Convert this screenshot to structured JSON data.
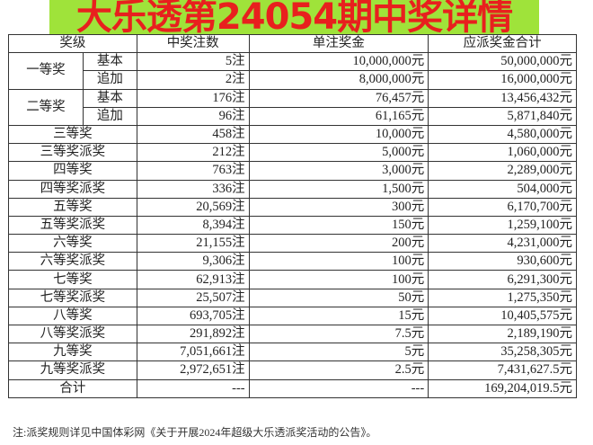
{
  "title": "大乐透第24054期中奖详情",
  "colors": {
    "title_text": "#e8201e",
    "title_bg": "#9fe33a"
  },
  "headers": [
    "奖级",
    "中奖注数",
    "单注奖金",
    "应派奖金合计"
  ],
  "split_rows": [
    {
      "level": "一等奖",
      "subs": [
        {
          "sub": "基本",
          "count": "5注",
          "prize": "10,000,000元",
          "total": "50,000,000元"
        },
        {
          "sub": "追加",
          "count": "2注",
          "prize": "8,000,000元",
          "total": "16,000,000元"
        }
      ]
    },
    {
      "level": "二等奖",
      "subs": [
        {
          "sub": "基本",
          "count": "176注",
          "prize": "76,457元",
          "total": "13,456,432元"
        },
        {
          "sub": "追加",
          "count": "96注",
          "prize": "61,165元",
          "total": "5,871,840元"
        }
      ]
    }
  ],
  "rows": [
    {
      "level": "三等奖",
      "count": "458注",
      "prize": "10,000元",
      "total": "4,580,000元"
    },
    {
      "level": "三等奖派奖",
      "count": "212注",
      "prize": "5,000元",
      "total": "1,060,000元"
    },
    {
      "level": "四等奖",
      "count": "763注",
      "prize": "3,000元",
      "total": "2,289,000元"
    },
    {
      "level": "四等奖派奖",
      "count": "336注",
      "prize": "1,500元",
      "total": "504,000元"
    },
    {
      "level": "五等奖",
      "count": "20,569注",
      "prize": "300元",
      "total": "6,170,700元"
    },
    {
      "level": "五等奖派奖",
      "count": "8,394注",
      "prize": "150元",
      "total": "1,259,100元"
    },
    {
      "level": "六等奖",
      "count": "21,155注",
      "prize": "200元",
      "total": "4,231,000元"
    },
    {
      "level": "六等奖派奖",
      "count": "9,306注",
      "prize": "100元",
      "total": "930,600元"
    },
    {
      "level": "七等奖",
      "count": "62,913注",
      "prize": "100元",
      "total": "6,291,300元"
    },
    {
      "level": "七等奖派奖",
      "count": "25,507注",
      "prize": "50元",
      "total": "1,275,350元"
    },
    {
      "level": "八等奖",
      "count": "693,705注",
      "prize": "15元",
      "total": "10,405,575元"
    },
    {
      "level": "八等奖派奖",
      "count": "291,892注",
      "prize": "7.5元",
      "total": "2,189,190元"
    },
    {
      "level": "九等奖",
      "count": "7,051,661注",
      "prize": "5元",
      "total": "35,258,305元"
    },
    {
      "level": "九等奖派奖",
      "count": "2,972,651注",
      "prize": "2.5元",
      "total": "7,431,627.5元"
    }
  ],
  "summary": {
    "level": "合计",
    "count": "---",
    "prize": "---",
    "total": "169,204,019.5元"
  },
  "note": "注:派奖规则详见中国体彩网《关于开展2024年超级大乐透派奖活动的公告》。"
}
